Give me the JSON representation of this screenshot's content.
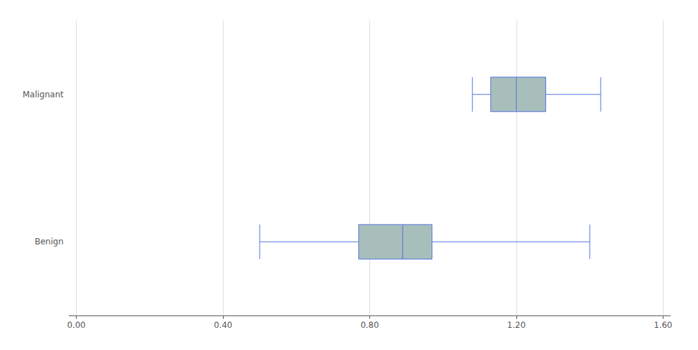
{
  "chart_data": {
    "type": "boxplot",
    "orientation": "horizontal",
    "categories": [
      "Benign",
      "Malignant"
    ],
    "values": [
      {
        "whislo": 0.5,
        "q1": 0.77,
        "med": 0.89,
        "q3": 0.97,
        "whishi": 1.4
      },
      {
        "whislo": 1.08,
        "q1": 1.13,
        "med": 1.2,
        "q3": 1.28,
        "whishi": 1.43
      }
    ],
    "color": "#a8beba",
    "xlim": [
      -0.02,
      1.62
    ],
    "xticks": [
      {
        "value": 0,
        "label": "0.00"
      },
      {
        "value": 0.4,
        "label": "0.40"
      },
      {
        "value": 0.8,
        "label": "0.80"
      },
      {
        "value": 1.2,
        "label": "1.20"
      },
      {
        "value": 1.6,
        "label": "1.60"
      }
    ],
    "grid": true
  }
}
